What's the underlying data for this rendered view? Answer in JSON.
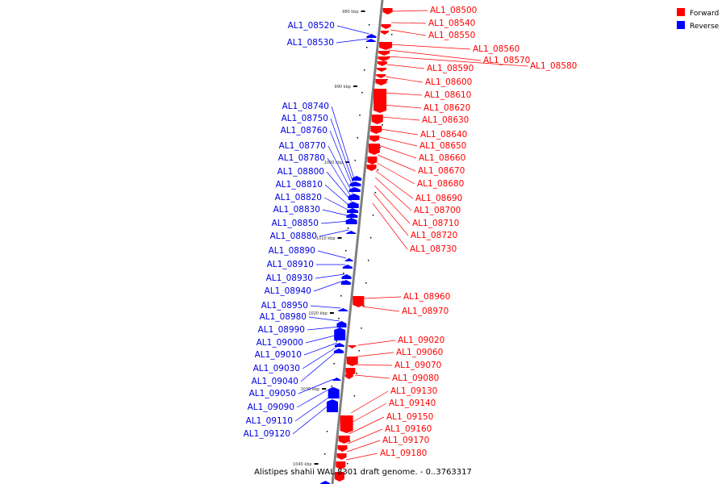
{
  "caption": "Alistipes shahii WAL 8301 draft genome. - 0..3763317",
  "legend": [
    {
      "label": "Forward",
      "color": "#ff0000"
    },
    {
      "label": "Reverse",
      "color": "#0000ff"
    }
  ],
  "colors": {
    "forward": "#ff0000",
    "reverse": "#0000ff",
    "axis": "#808080"
  },
  "ticks": [
    "980 kbp",
    "990 kbp",
    "1000 kbp",
    "1010 kbp",
    "1020 kbp",
    "1030 kbp",
    "1040 kbp"
  ],
  "genes": {
    "forward": [
      "AL1_08500",
      "AL1_08540",
      "AL1_08550",
      "AL1_08560",
      "AL1_08570",
      "AL1_08580",
      "AL1_08590",
      "AL1_08600",
      "AL1_08610",
      "AL1_08620",
      "AL1_08630",
      "AL1_08640",
      "AL1_08650",
      "AL1_08660",
      "AL1_08670",
      "AL1_08680",
      "AL1_08690",
      "AL1_08700",
      "AL1_08710",
      "AL1_08720",
      "AL1_08730",
      "AL1_08960",
      "AL1_08970",
      "AL1_09020",
      "AL1_09060",
      "AL1_09070",
      "AL1_09080",
      "AL1_09130",
      "AL1_09140",
      "AL1_09150",
      "AL1_09160",
      "AL1_09170",
      "AL1_09180"
    ],
    "reverse": [
      "AL1_08520",
      "AL1_08530",
      "AL1_08740",
      "AL1_08750",
      "AL1_08760",
      "AL1_08770",
      "AL1_08780",
      "AL1_08800",
      "AL1_08810",
      "AL1_08820",
      "AL1_08830",
      "AL1_08850",
      "AL1_08880",
      "AL1_08890",
      "AL1_08910",
      "AL1_08930",
      "AL1_08940",
      "AL1_08950",
      "AL1_08980",
      "AL1_08990",
      "AL1_09000",
      "AL1_09010",
      "AL1_09030",
      "AL1_09040",
      "AL1_09050",
      "AL1_09090",
      "AL1_09110",
      "AL1_09120"
    ]
  }
}
